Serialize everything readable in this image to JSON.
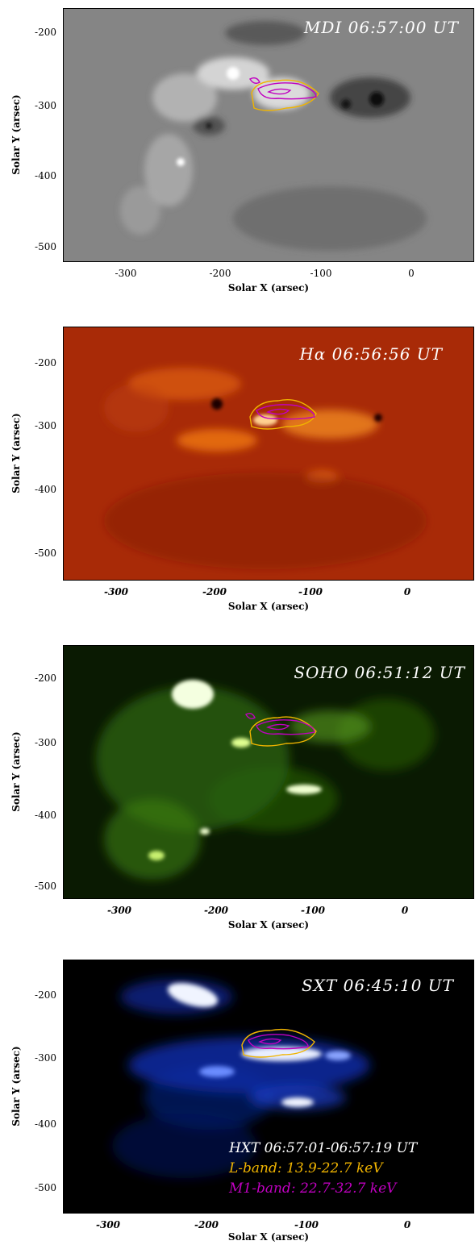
{
  "panels": [
    {
      "title": "MDI 06:57:00 UT",
      "y_ticks": [
        "-200",
        "-300",
        "-400",
        "-500"
      ],
      "x_ticks": [
        "-300",
        "-200",
        "-100",
        "0"
      ],
      "x_label": "Solar X (arsec)",
      "y_label": "Solar Y (arsec)",
      "colormap": "grayscale",
      "base_color": "#858585"
    },
    {
      "title": "Hα 06:56:56 UT",
      "y_ticks": [
        "-200",
        "-300",
        "-400",
        "-500"
      ],
      "x_ticks": [
        "-300",
        "-200",
        "-100",
        "0"
      ],
      "x_label": "Solar X (arsec)",
      "y_label": "Solar Y (arsec)",
      "colormap": "red",
      "base_color": "#a82a07"
    },
    {
      "title": "SOHO 06:51:12 UT",
      "y_ticks": [
        "-200",
        "-300",
        "-400",
        "-500"
      ],
      "x_ticks": [
        "-300",
        "-200",
        "-100",
        "0"
      ],
      "x_label": "Solar X (arsec)",
      "y_label": "Solar Y (arsec)",
      "colormap": "green",
      "base_color": "#0a1a02"
    },
    {
      "title": "SXT 06:45:10 UT",
      "y_ticks": [
        "-200",
        "-300",
        "-400",
        "-500"
      ],
      "x_ticks": [
        "-300",
        "-200",
        "-100",
        "0"
      ],
      "x_label": "Solar X (arsec)",
      "y_label": "Solar Y (arsec)",
      "colormap": "blue",
      "base_color": "#000000"
    }
  ],
  "legend": {
    "hxt": "HXT 06:57:01-06:57:19 UT",
    "l_band": "L-band: 13.9-22.7 keV",
    "m1_band": "M1-band: 22.7-32.7 keV"
  },
  "colors": {
    "l_band": "#f0b400",
    "m1_band": "#c000c0",
    "title_text": "#ffffff"
  }
}
